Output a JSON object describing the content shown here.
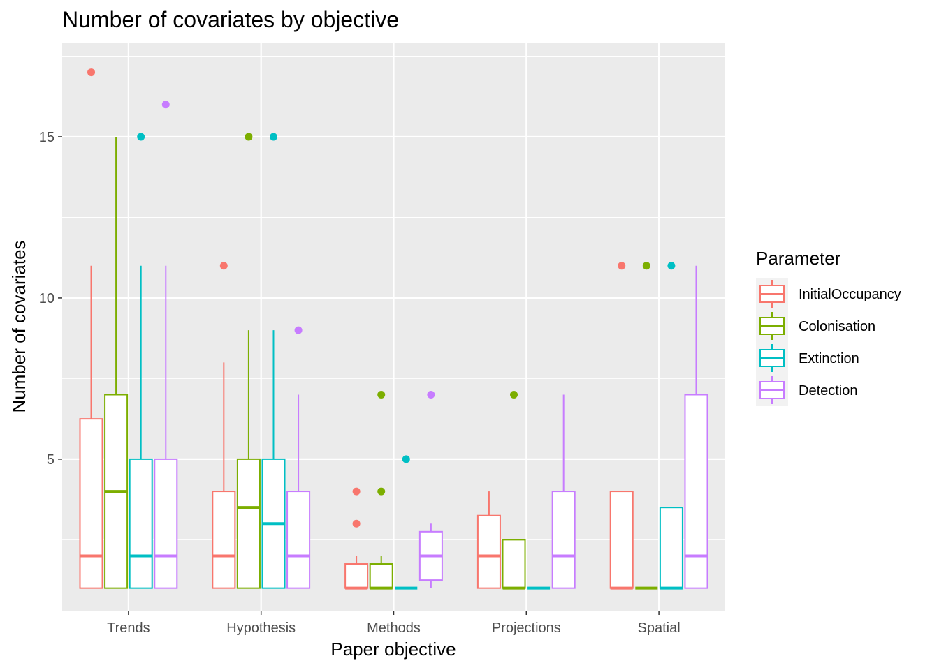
{
  "chart_data": {
    "type": "box",
    "title": "Number of covariates by objective",
    "xlabel": "Paper objective",
    "ylabel": "Number of covariates",
    "ylim": [
      0.3,
      17.9
    ],
    "yticks": [
      5,
      10,
      15
    ],
    "grid": true,
    "legend_position": "right",
    "legend_title": "Parameter",
    "categories": [
      "Trends",
      "Hypothesis",
      "Methods",
      "Projections",
      "Spatial"
    ],
    "series": [
      {
        "name": "InitialOccupancy",
        "color": "#F8766D",
        "boxes": [
          {
            "lower_whisker": 1,
            "q1": 1,
            "median": 2,
            "q3": 6.25,
            "upper_whisker": 11,
            "outliers": [
              17
            ]
          },
          {
            "lower_whisker": 1,
            "q1": 1,
            "median": 2,
            "q3": 4,
            "upper_whisker": 8,
            "outliers": [
              11
            ]
          },
          {
            "lower_whisker": 1,
            "q1": 1,
            "median": 1,
            "q3": 1.75,
            "upper_whisker": 2,
            "outliers": [
              3,
              4
            ]
          },
          {
            "lower_whisker": 1,
            "q1": 1,
            "median": 2,
            "q3": 3.25,
            "upper_whisker": 4,
            "outliers": []
          },
          {
            "lower_whisker": 1,
            "q1": 1,
            "median": 1,
            "q3": 4,
            "upper_whisker": 4,
            "outliers": [
              11
            ]
          }
        ]
      },
      {
        "name": "Colonisation",
        "color": "#7CAE00",
        "boxes": [
          {
            "lower_whisker": 1,
            "q1": 1,
            "median": 4,
            "q3": 7,
            "upper_whisker": 15,
            "outliers": []
          },
          {
            "lower_whisker": 1,
            "q1": 1,
            "median": 3.5,
            "q3": 5,
            "upper_whisker": 9,
            "outliers": [
              15
            ]
          },
          {
            "lower_whisker": 1,
            "q1": 1,
            "median": 1,
            "q3": 1.75,
            "upper_whisker": 2,
            "outliers": [
              4,
              7
            ]
          },
          {
            "lower_whisker": 1,
            "q1": 1,
            "median": 1,
            "q3": 2.5,
            "upper_whisker": 2.5,
            "outliers": [
              7
            ]
          },
          {
            "lower_whisker": 1,
            "q1": 1,
            "median": 1,
            "q3": 1,
            "upper_whisker": 1,
            "outliers": [
              11
            ]
          }
        ]
      },
      {
        "name": "Extinction",
        "color": "#00BFC4",
        "boxes": [
          {
            "lower_whisker": 1,
            "q1": 1,
            "median": 2,
            "q3": 5,
            "upper_whisker": 11,
            "outliers": [
              15
            ]
          },
          {
            "lower_whisker": 1,
            "q1": 1,
            "median": 3,
            "q3": 5,
            "upper_whisker": 9,
            "outliers": [
              15
            ]
          },
          {
            "lower_whisker": 1,
            "q1": 1,
            "median": 1,
            "q3": 1,
            "upper_whisker": 1,
            "outliers": [
              5
            ]
          },
          {
            "lower_whisker": 1,
            "q1": 1,
            "median": 1,
            "q3": 1,
            "upper_whisker": 1,
            "outliers": []
          },
          {
            "lower_whisker": 1,
            "q1": 1,
            "median": 1,
            "q3": 3.5,
            "upper_whisker": 3.5,
            "outliers": [
              11
            ]
          }
        ]
      },
      {
        "name": "Detection",
        "color": "#C77CFF",
        "boxes": [
          {
            "lower_whisker": 1,
            "q1": 1,
            "median": 2,
            "q3": 5,
            "upper_whisker": 11,
            "outliers": [
              16
            ]
          },
          {
            "lower_whisker": 1,
            "q1": 1,
            "median": 2,
            "q3": 4,
            "upper_whisker": 7,
            "outliers": [
              9
            ]
          },
          {
            "lower_whisker": 1,
            "q1": 1.25,
            "median": 2,
            "q3": 2.75,
            "upper_whisker": 3,
            "outliers": [
              7
            ]
          },
          {
            "lower_whisker": 1,
            "q1": 1,
            "median": 2,
            "q3": 4,
            "upper_whisker": 7,
            "outliers": []
          },
          {
            "lower_whisker": 1,
            "q1": 1,
            "median": 2,
            "q3": 7,
            "upper_whisker": 11,
            "outliers": []
          }
        ]
      }
    ]
  }
}
